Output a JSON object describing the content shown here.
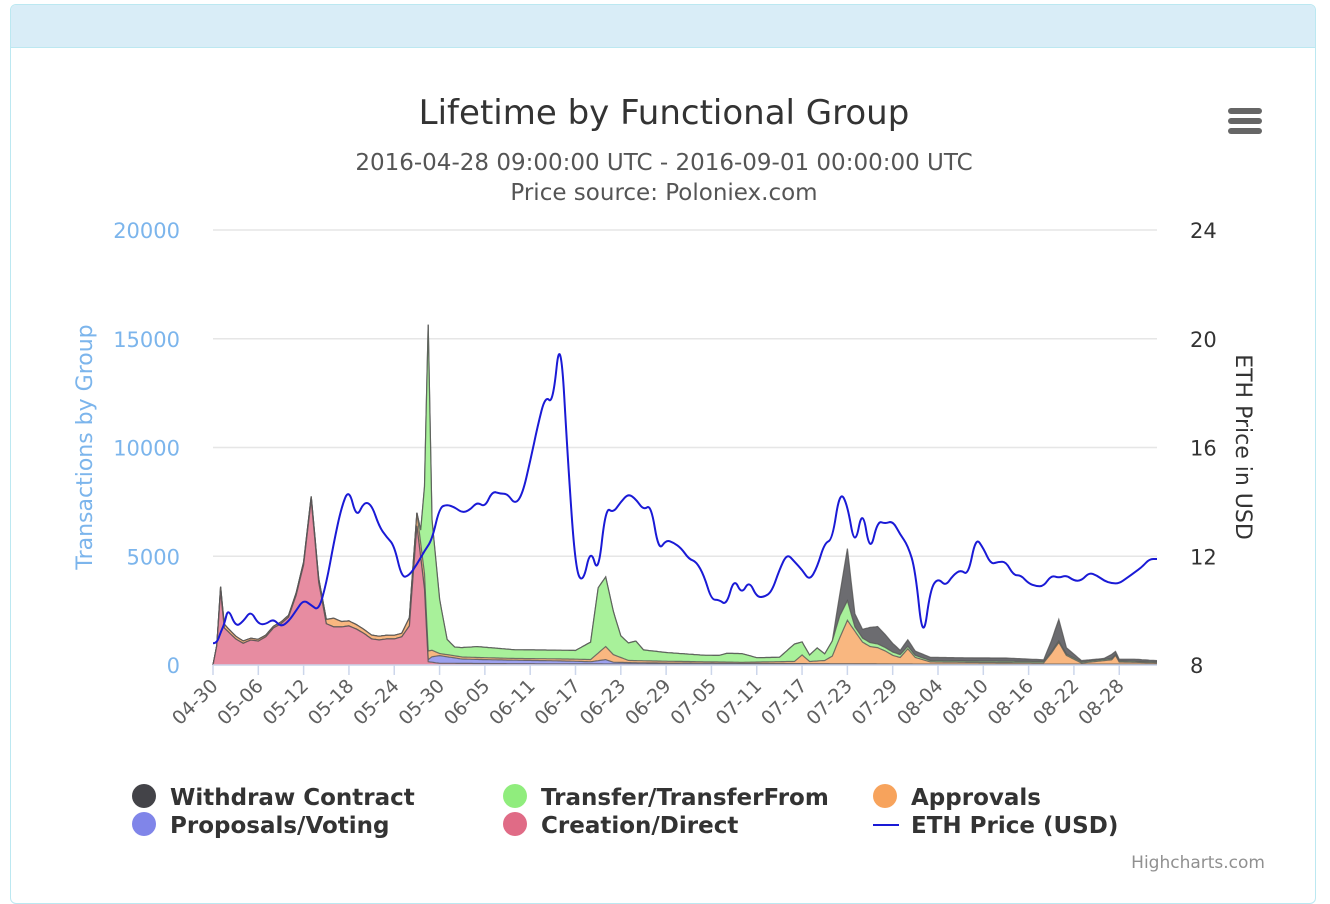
{
  "chart_data": {
    "type": "area",
    "title": "Lifetime by Functional Group",
    "subtitle": "2016-04-28 09:00:00 UTC - 2016-09-01 00:00:00 UTC",
    "subtitle2": "Price source: Poloniex.com",
    "y_left": {
      "title": "Transactions by Group",
      "ticks": [
        "0",
        "5000",
        "10000",
        "15000",
        "20000"
      ],
      "range": [
        0,
        20000
      ]
    },
    "y_right": {
      "title": "ETH Price in USD",
      "ticks": [
        "8",
        "12",
        "16",
        "20",
        "24"
      ],
      "range": [
        8,
        24
      ]
    },
    "x_tick_labels": [
      "04-30",
      "05-06",
      "05-12",
      "05-18",
      "05-24",
      "05-30",
      "06-05",
      "06-11",
      "06-17",
      "06-23",
      "06-29",
      "07-05",
      "07-11",
      "07-17",
      "07-23",
      "07-29",
      "08-04",
      "08-10",
      "08-16",
      "08-22",
      "08-28"
    ],
    "x_range_days": [
      0,
      125
    ],
    "x_tick_start_day": 0,
    "x_tick_step_days": 6,
    "stack_order": [
      "Creation/Direct",
      "Proposals/Voting",
      "Approvals",
      "Transfer/TransferFrom",
      "Withdraw Contract"
    ],
    "series": [
      {
        "name": "Creation/Direct",
        "color": "#e06b86",
        "points": [
          [
            0,
            0
          ],
          [
            0.5,
            900
          ],
          [
            1,
            3400
          ],
          [
            1.5,
            1700
          ],
          [
            3,
            1200
          ],
          [
            4,
            1000
          ],
          [
            5,
            1150
          ],
          [
            6,
            1100
          ],
          [
            7,
            1300
          ],
          [
            8,
            1700
          ],
          [
            9,
            1900
          ],
          [
            10,
            2200
          ],
          [
            11,
            3200
          ],
          [
            12,
            4600
          ],
          [
            13,
            7600
          ],
          [
            14,
            3800
          ],
          [
            15,
            1900
          ],
          [
            16,
            1750
          ],
          [
            17,
            1750
          ],
          [
            18,
            1800
          ],
          [
            19,
            1650
          ],
          [
            20,
            1450
          ],
          [
            21,
            1200
          ],
          [
            22,
            1150
          ],
          [
            23,
            1200
          ],
          [
            24,
            1200
          ],
          [
            25,
            1300
          ],
          [
            26,
            1800
          ],
          [
            27,
            6400
          ],
          [
            28,
            3500
          ],
          [
            28.5,
            150
          ],
          [
            30,
            80
          ],
          [
            40,
            60
          ],
          [
            60,
            40
          ],
          [
            80,
            30
          ],
          [
            100,
            20
          ],
          [
            125,
            20
          ]
        ]
      },
      {
        "name": "Proposals/Voting",
        "color": "#8085e9",
        "points": [
          [
            0,
            0
          ],
          [
            28,
            0
          ],
          [
            28.5,
            100
          ],
          [
            29,
            250
          ],
          [
            30,
            350
          ],
          [
            31,
            300
          ],
          [
            33,
            200
          ],
          [
            36,
            180
          ],
          [
            40,
            160
          ],
          [
            45,
            140
          ],
          [
            48,
            120
          ],
          [
            50,
            100
          ],
          [
            52,
            200
          ],
          [
            53,
            80
          ],
          [
            56,
            60
          ],
          [
            60,
            50
          ],
          [
            70,
            40
          ],
          [
            80,
            30
          ],
          [
            90,
            20
          ],
          [
            100,
            20
          ],
          [
            125,
            20
          ]
        ]
      },
      {
        "name": "Approvals",
        "color": "#f7a35c",
        "points": [
          [
            0,
            0
          ],
          [
            0.5,
            0
          ],
          [
            1,
            200
          ],
          [
            2,
            150
          ],
          [
            5,
            80
          ],
          [
            10,
            80
          ],
          [
            15,
            200
          ],
          [
            16,
            400
          ],
          [
            17,
            250
          ],
          [
            20,
            180
          ],
          [
            25,
            160
          ],
          [
            27,
            600
          ],
          [
            28,
            700
          ],
          [
            28.5,
            400
          ],
          [
            30,
            100
          ],
          [
            40,
            80
          ],
          [
            50,
            100
          ],
          [
            51,
            350
          ],
          [
            52,
            600
          ],
          [
            53,
            350
          ],
          [
            55,
            100
          ],
          [
            70,
            50
          ],
          [
            77,
            100
          ],
          [
            78,
            400
          ],
          [
            79,
            100
          ],
          [
            81,
            150
          ],
          [
            82,
            350
          ],
          [
            83,
            1200
          ],
          [
            84,
            2000
          ],
          [
            85,
            1500
          ],
          [
            86,
            1000
          ],
          [
            87,
            800
          ],
          [
            88,
            750
          ],
          [
            89,
            600
          ],
          [
            90,
            400
          ],
          [
            91,
            300
          ],
          [
            92,
            700
          ],
          [
            93,
            300
          ],
          [
            95,
            100
          ],
          [
            100,
            80
          ],
          [
            110,
            60
          ],
          [
            111,
            500
          ],
          [
            112,
            1000
          ],
          [
            113,
            400
          ],
          [
            115,
            50
          ],
          [
            119,
            200
          ],
          [
            119.5,
            400
          ],
          [
            120,
            100
          ],
          [
            125,
            60
          ]
        ]
      },
      {
        "name": "Transfer/TransferFrom",
        "color": "#90ed7d",
        "points": [
          [
            0,
            0
          ],
          [
            27,
            0
          ],
          [
            27.5,
            600
          ],
          [
            28,
            4000
          ],
          [
            28.5,
            15000
          ],
          [
            29,
            6000
          ],
          [
            30,
            2500
          ],
          [
            31,
            700
          ],
          [
            32,
            400
          ],
          [
            35,
            500
          ],
          [
            40,
            400
          ],
          [
            45,
            400
          ],
          [
            48,
            400
          ],
          [
            50,
            800
          ],
          [
            51,
            3000
          ],
          [
            52,
            3200
          ],
          [
            53,
            2000
          ],
          [
            54,
            1000
          ],
          [
            55,
            800
          ],
          [
            56,
            900
          ],
          [
            57,
            500
          ],
          [
            60,
            400
          ],
          [
            65,
            300
          ],
          [
            67,
            300
          ],
          [
            68,
            400
          ],
          [
            70,
            400
          ],
          [
            72,
            200
          ],
          [
            75,
            200
          ],
          [
            77,
            800
          ],
          [
            78,
            600
          ],
          [
            79,
            300
          ],
          [
            80,
            600
          ],
          [
            81,
            300
          ],
          [
            82,
            700
          ],
          [
            83,
            1000
          ],
          [
            84,
            900
          ],
          [
            85,
            200
          ],
          [
            90,
            150
          ],
          [
            95,
            60
          ],
          [
            100,
            60
          ],
          [
            110,
            60
          ],
          [
            125,
            40
          ]
        ]
      },
      {
        "name": "Withdraw Contract",
        "color": "#434348",
        "points": [
          [
            0,
            0
          ],
          [
            82,
            0
          ],
          [
            83,
            1000
          ],
          [
            84,
            2400
          ],
          [
            85,
            600
          ],
          [
            86,
            400
          ],
          [
            87,
            700
          ],
          [
            88,
            800
          ],
          [
            89,
            600
          ],
          [
            90,
            400
          ],
          [
            91,
            200
          ],
          [
            92,
            300
          ],
          [
            93,
            200
          ],
          [
            95,
            150
          ],
          [
            100,
            150
          ],
          [
            105,
            150
          ],
          [
            110,
            80
          ],
          [
            111,
            500
          ],
          [
            112,
            1000
          ],
          [
            113,
            300
          ],
          [
            115,
            60
          ],
          [
            118,
            50
          ],
          [
            119,
            200
          ],
          [
            120,
            80
          ],
          [
            122,
            100
          ],
          [
            125,
            60
          ]
        ]
      }
    ],
    "price_series": {
      "name": "ETH Price (USD)",
      "color": "#1a1ad6",
      "points": [
        [
          0,
          8.8
        ],
        [
          0.5,
          8.8
        ],
        [
          1,
          9.2
        ],
        [
          1.5,
          9.5
        ],
        [
          2,
          10.1
        ],
        [
          3,
          9.4
        ],
        [
          4,
          9.6
        ],
        [
          5,
          10.0
        ],
        [
          6,
          9.5
        ],
        [
          7,
          9.5
        ],
        [
          8,
          9.7
        ],
        [
          9,
          9.4
        ],
        [
          10,
          9.6
        ],
        [
          11,
          10.0
        ],
        [
          12,
          10.4
        ],
        [
          13,
          10.2
        ],
        [
          14,
          10.0
        ],
        [
          15,
          11.0
        ],
        [
          16,
          12.5
        ],
        [
          17,
          13.8
        ],
        [
          18,
          14.5
        ],
        [
          19,
          13.4
        ],
        [
          20,
          14.0
        ],
        [
          21,
          13.9
        ],
        [
          22,
          13.1
        ],
        [
          23,
          12.7
        ],
        [
          24,
          12.4
        ],
        [
          25,
          11.2
        ],
        [
          26,
          11.3
        ],
        [
          27,
          11.7
        ],
        [
          28,
          12.2
        ],
        [
          29,
          12.6
        ],
        [
          30,
          13.8
        ],
        [
          31,
          13.9
        ],
        [
          32,
          13.8
        ],
        [
          33,
          13.6
        ],
        [
          34,
          13.7
        ],
        [
          35,
          14.0
        ],
        [
          36,
          13.8
        ],
        [
          37,
          14.4
        ],
        [
          38,
          14.3
        ],
        [
          39,
          14.3
        ],
        [
          40,
          13.9
        ],
        [
          41,
          14.3
        ],
        [
          42,
          15.5
        ],
        [
          43,
          16.8
        ],
        [
          44,
          17.9
        ],
        [
          45,
          17.6
        ],
        [
          46,
          20.3
        ],
        [
          47,
          15.5
        ],
        [
          48,
          11.5
        ],
        [
          49,
          11.0
        ],
        [
          50,
          12.3
        ],
        [
          51,
          11.3
        ],
        [
          52,
          13.8
        ],
        [
          53,
          13.6
        ],
        [
          54,
          14.0
        ],
        [
          55,
          14.3
        ],
        [
          56,
          14.1
        ],
        [
          57,
          13.7
        ],
        [
          58,
          13.9
        ],
        [
          59,
          12.2
        ],
        [
          60,
          12.6
        ],
        [
          61,
          12.5
        ],
        [
          62,
          12.3
        ],
        [
          63,
          11.9
        ],
        [
          64,
          11.8
        ],
        [
          65,
          11.3
        ],
        [
          66,
          10.4
        ],
        [
          67,
          10.4
        ],
        [
          68,
          10.2
        ],
        [
          69,
          11.2
        ],
        [
          70,
          10.6
        ],
        [
          71,
          11.1
        ],
        [
          72,
          10.5
        ],
        [
          73,
          10.5
        ],
        [
          74,
          10.7
        ],
        [
          75,
          11.5
        ],
        [
          76,
          12.1
        ],
        [
          77,
          11.8
        ],
        [
          78,
          11.5
        ],
        [
          79,
          11.1
        ],
        [
          80,
          11.6
        ],
        [
          81,
          12.5
        ],
        [
          82,
          12.6
        ],
        [
          83,
          14.4
        ],
        [
          84,
          13.9
        ],
        [
          85,
          12.3
        ],
        [
          86,
          13.8
        ],
        [
          87,
          12.1
        ],
        [
          88,
          13.3
        ],
        [
          89,
          13.2
        ],
        [
          90,
          13.3
        ],
        [
          91,
          12.8
        ],
        [
          92,
          12.4
        ],
        [
          93,
          11.5
        ],
        [
          94,
          8.8
        ],
        [
          95,
          10.8
        ],
        [
          96,
          11.2
        ],
        [
          97,
          10.9
        ],
        [
          98,
          11.3
        ],
        [
          99,
          11.5
        ],
        [
          100,
          11.3
        ],
        [
          101,
          12.7
        ],
        [
          102,
          12.3
        ],
        [
          103,
          11.7
        ],
        [
          104,
          11.8
        ],
        [
          105,
          11.8
        ],
        [
          106,
          11.3
        ],
        [
          107,
          11.3
        ],
        [
          108,
          11.0
        ],
        [
          109,
          10.9
        ],
        [
          110,
          10.9
        ],
        [
          111,
          11.3
        ],
        [
          112,
          11.2
        ],
        [
          113,
          11.3
        ],
        [
          114,
          11.1
        ],
        [
          115,
          11.1
        ],
        [
          116,
          11.4
        ],
        [
          117,
          11.3
        ],
        [
          118,
          11.1
        ],
        [
          119,
          11.0
        ],
        [
          120,
          11.0
        ],
        [
          121,
          11.2
        ],
        [
          122,
          11.4
        ],
        [
          123,
          11.6
        ],
        [
          124,
          11.9
        ],
        [
          125,
          11.9
        ]
      ]
    },
    "legend": [
      {
        "label": "Withdraw Contract",
        "color": "#434348",
        "kind": "circle"
      },
      {
        "label": "Transfer/TransferFrom",
        "color": "#90ed7d",
        "kind": "circle"
      },
      {
        "label": "Approvals",
        "color": "#f7a35c",
        "kind": "circle"
      },
      {
        "label": "Proposals/Voting",
        "color": "#8085e9",
        "kind": "circle"
      },
      {
        "label": "Creation/Direct",
        "color": "#e06b86",
        "kind": "circle"
      },
      {
        "label": "ETH Price (USD)",
        "color": "#1a1ad6",
        "kind": "line"
      }
    ],
    "grid": true,
    "legend_position": "bottom",
    "credits": "Highcharts.com"
  }
}
